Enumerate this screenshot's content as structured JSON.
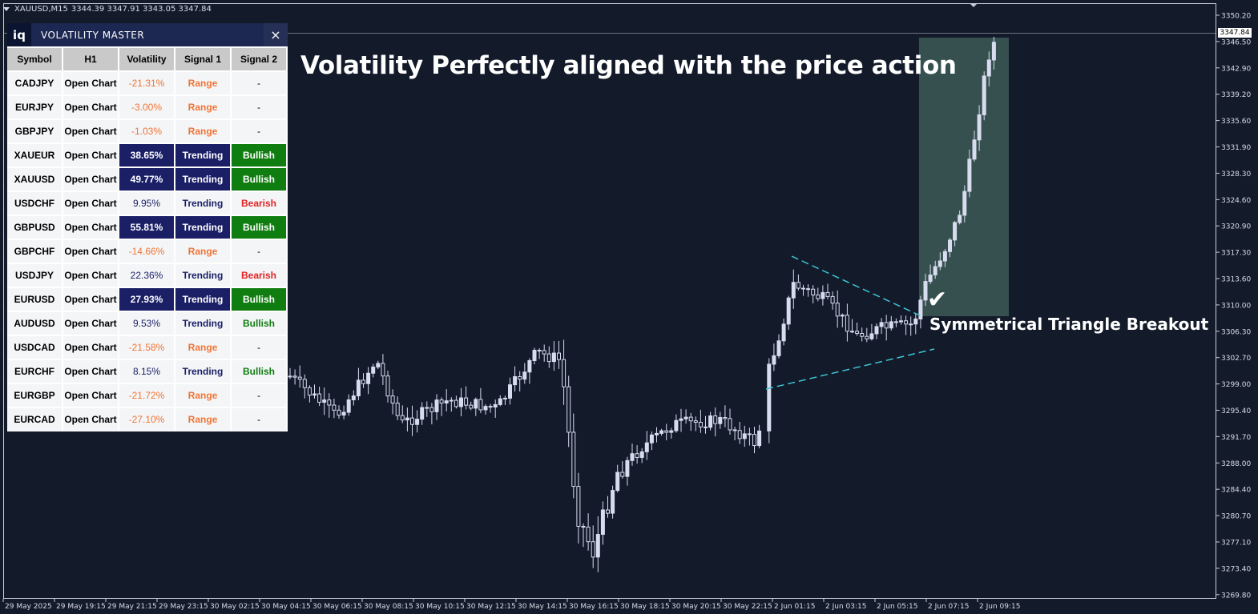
{
  "chart_header": {
    "symbol": "XAUUSD,M15",
    "ohlc": "3344.39 3347.91 3343.05 3347.84"
  },
  "headline": "Volatility Perfectly aligned with the price action",
  "annotation": "Symmetrical Triangle Breakout",
  "current_price": "3347.84",
  "colors": {
    "background": "#131a2a",
    "candle": "#d8dcef",
    "trendline": "#3ec6d4",
    "highlight_zone": "#3d5956",
    "panel_header": "#1c2752",
    "strong": "#1a1f66",
    "bullish": "#107d10",
    "bearish": "#e12222",
    "range": "#f07536"
  },
  "price_axis": {
    "labels": [
      "3350.20",
      "3346.50",
      "3342.90",
      "3339.20",
      "3335.60",
      "3331.90",
      "3328.30",
      "3324.60",
      "3320.90",
      "3317.30",
      "3313.60",
      "3310.00",
      "3306.30",
      "3302.70",
      "3299.00",
      "3295.40",
      "3291.70",
      "3288.00",
      "3284.40",
      "3280.70",
      "3277.10",
      "3273.40",
      "3269.80"
    ]
  },
  "time_axis": {
    "labels": [
      "29 May 2025",
      "29 May 19:15",
      "29 May 21:15",
      "29 May 23:15",
      "30 May 02:15",
      "30 May 04:15",
      "30 May 06:15",
      "30 May 08:15",
      "30 May 10:15",
      "30 May 12:15",
      "30 May 14:15",
      "30 May 16:15",
      "30 May 18:15",
      "30 May 20:15",
      "30 May 22:15",
      "2 Jun 01:15",
      "2 Jun 03:15",
      "2 Jun 05:15",
      "2 Jun 07:15",
      "2 Jun 09:15"
    ]
  },
  "panel": {
    "logo": "iq",
    "title": "VOLATILITY MASTER",
    "close": "×",
    "columns": [
      "Symbol",
      "H1",
      "Volatility",
      "Signal 1",
      "Signal 2"
    ],
    "rows": [
      {
        "symbol": "CADJPY",
        "h1": "Open Chart",
        "volatility": "-21.31%",
        "signal1": "Range",
        "signal2": "-",
        "vclass": "vol-neg",
        "s1class": "sig-range",
        "s2class": "sig2-none"
      },
      {
        "symbol": "EURJPY",
        "h1": "Open Chart",
        "volatility": "-3.00%",
        "signal1": "Range",
        "signal2": "-",
        "vclass": "vol-neg",
        "s1class": "sig-range",
        "s2class": "sig2-none"
      },
      {
        "symbol": "GBPJPY",
        "h1": "Open Chart",
        "volatility": "-1.03%",
        "signal1": "Range",
        "signal2": "-",
        "vclass": "vol-neg",
        "s1class": "sig-range",
        "s2class": "sig2-none"
      },
      {
        "symbol": "XAUEUR",
        "h1": "Open Chart",
        "volatility": "38.65%",
        "signal1": "Trending",
        "signal2": "Bullish",
        "vclass": "vol-strong",
        "s1class": "sig-trend-strong",
        "s2class": "sig2-bull-strong"
      },
      {
        "symbol": "XAUUSD",
        "h1": "Open Chart",
        "volatility": "49.77%",
        "signal1": "Trending",
        "signal2": "Bullish",
        "vclass": "vol-strong",
        "s1class": "sig-trend-strong",
        "s2class": "sig2-bull-strong"
      },
      {
        "symbol": "USDCHF",
        "h1": "Open Chart",
        "volatility": "9.95%",
        "signal1": "Trending",
        "signal2": "Bearish",
        "vclass": "vol-pos",
        "s1class": "sig-trend",
        "s2class": "sig2-bear"
      },
      {
        "symbol": "GBPUSD",
        "h1": "Open Chart",
        "volatility": "55.81%",
        "signal1": "Trending",
        "signal2": "Bullish",
        "vclass": "vol-strong",
        "s1class": "sig-trend-strong",
        "s2class": "sig2-bull-strong"
      },
      {
        "symbol": "GBPCHF",
        "h1": "Open Chart",
        "volatility": "-14.66%",
        "signal1": "Range",
        "signal2": "-",
        "vclass": "vol-neg",
        "s1class": "sig-range",
        "s2class": "sig2-none"
      },
      {
        "symbol": "USDJPY",
        "h1": "Open Chart",
        "volatility": "22.36%",
        "signal1": "Trending",
        "signal2": "Bearish",
        "vclass": "vol-pos",
        "s1class": "sig-trend",
        "s2class": "sig2-bear"
      },
      {
        "symbol": "EURUSD",
        "h1": "Open Chart",
        "volatility": "27.93%",
        "signal1": "Trending",
        "signal2": "Bullish",
        "vclass": "vol-strong",
        "s1class": "sig-trend-strong",
        "s2class": "sig2-bull-strong"
      },
      {
        "symbol": "AUDUSD",
        "h1": "Open Chart",
        "volatility": "9.53%",
        "signal1": "Trending",
        "signal2": "Bullish",
        "vclass": "vol-pos",
        "s1class": "sig-trend",
        "s2class": "sig2-bull"
      },
      {
        "symbol": "USDCAD",
        "h1": "Open Chart",
        "volatility": "-21.58%",
        "signal1": "Range",
        "signal2": "-",
        "vclass": "vol-neg",
        "s1class": "sig-range",
        "s2class": "sig2-none"
      },
      {
        "symbol": "EURCHF",
        "h1": "Open Chart",
        "volatility": "8.15%",
        "signal1": "Trending",
        "signal2": "Bullish",
        "vclass": "vol-pos",
        "s1class": "sig-trend",
        "s2class": "sig2-bull"
      },
      {
        "symbol": "EURGBP",
        "h1": "Open Chart",
        "volatility": "-21.72%",
        "signal1": "Range",
        "signal2": "-",
        "vclass": "vol-neg",
        "s1class": "sig-range",
        "s2class": "sig2-none"
      },
      {
        "symbol": "EURCAD",
        "h1": "Open Chart",
        "volatility": "-27.10%",
        "signal1": "Range",
        "signal2": "-",
        "vclass": "vol-neg",
        "s1class": "sig-range",
        "s2class": "sig2-none"
      }
    ]
  }
}
